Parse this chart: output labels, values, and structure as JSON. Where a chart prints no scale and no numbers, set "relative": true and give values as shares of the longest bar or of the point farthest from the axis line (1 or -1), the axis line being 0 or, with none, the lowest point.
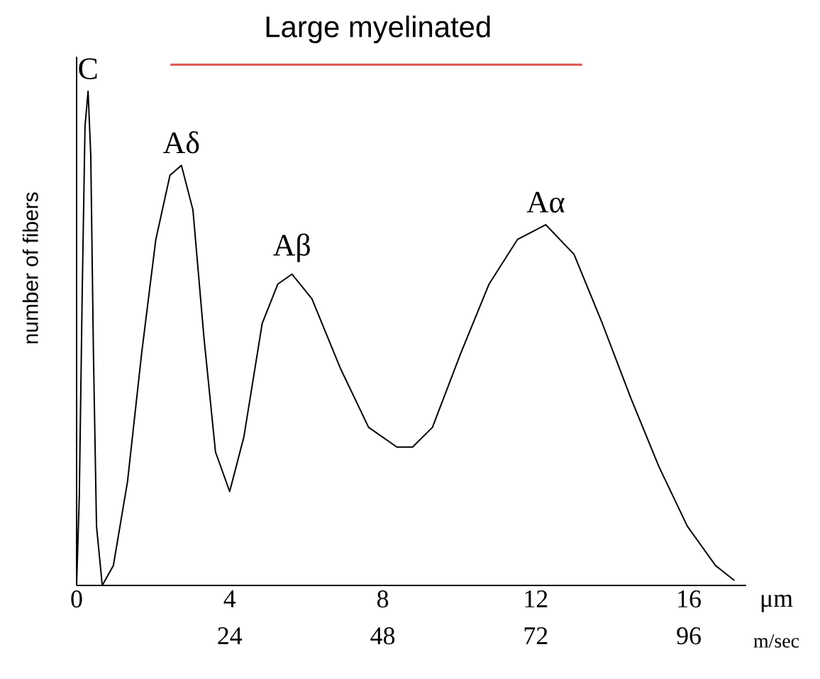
{
  "chart_data": {
    "type": "line",
    "title": "Large myelinated",
    "ylabel": "number of fibers",
    "xlabel": "μm",
    "x2label": "m/sec",
    "relative": true,
    "tick_labels": "x",
    "xlim": [
      0,
      17.5
    ],
    "xticks": [
      0,
      4,
      8,
      12,
      16
    ],
    "x2lim": [
      0,
      105
    ],
    "x2ticks": [
      24,
      48,
      72,
      96
    ],
    "x": [
      0,
      0.07,
      0.15,
      0.22,
      0.3,
      0.37,
      0.44,
      0.52,
      0.67,
      0.96,
      1.33,
      1.7,
      2.07,
      2.44,
      2.74,
      3.04,
      3.33,
      3.63,
      4.0,
      4.37,
      4.85,
      5.26,
      5.63,
      6.15,
      6.89,
      7.63,
      8.37,
      8.78,
      9.3,
      10.04,
      10.78,
      11.52,
      12.26,
      13.0,
      13.74,
      14.48,
      15.22,
      15.96,
      16.7,
      17.19
    ],
    "series": [
      {
        "color": "#000000",
        "values": [
          0,
          0.18,
          0.61,
          0.93,
          1.0,
          0.87,
          0.47,
          0.12,
          0.0,
          0.04,
          0.21,
          0.47,
          0.7,
          0.83,
          0.85,
          0.76,
          0.5,
          0.27,
          0.19,
          0.3,
          0.53,
          0.61,
          0.63,
          0.58,
          0.44,
          0.32,
          0.28,
          0.28,
          0.32,
          0.47,
          0.61,
          0.7,
          0.73,
          0.67,
          0.53,
          0.38,
          0.24,
          0.12,
          0.04,
          0.01
        ]
      }
    ],
    "annotations": [
      {
        "text": "C",
        "x": 0.3,
        "y": 1.0
      },
      {
        "text": "Aδ",
        "x": 2.74,
        "y": 0.85
      },
      {
        "text": "Aβ",
        "x": 5.63,
        "y": 0.63
      },
      {
        "text": "Aα",
        "x": 12.26,
        "y": 0.73
      }
    ]
  }
}
